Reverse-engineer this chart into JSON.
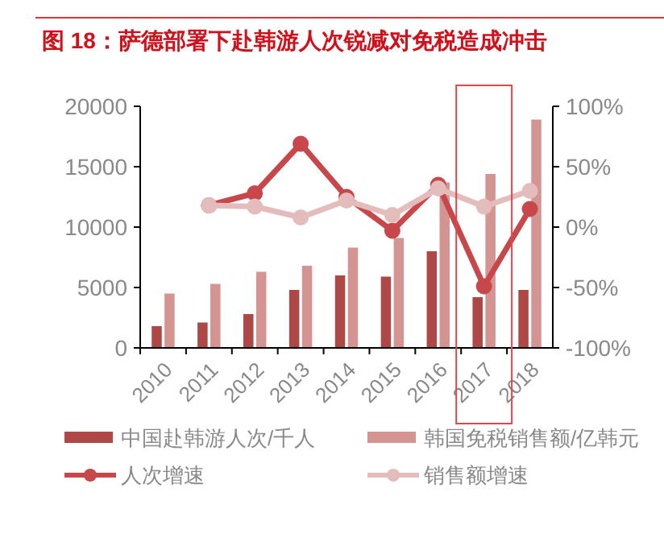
{
  "chart_data": {
    "type": "bar",
    "title": "图 18：萨德部署下赴韩游人次锐减对免税造成冲击",
    "categories": [
      "2010",
      "2011",
      "2012",
      "2013",
      "2014",
      "2015",
      "2016",
      "2017",
      "2018"
    ],
    "series": [
      {
        "name": "中国赴韩游人次/千人",
        "color": "#ad4846",
        "values": [
          1800,
          2100,
          2800,
          4800,
          6000,
          5900,
          8000,
          4200,
          4800
        ]
      },
      {
        "name": "韩国免税销售额/亿韩元",
        "color": "#d49592",
        "values": [
          4500,
          5300,
          6300,
          6800,
          8300,
          9100,
          13700,
          14400,
          18900
        ]
      },
      {
        "name": "人次增速",
        "type": "line",
        "axis": "y2",
        "color": "#c8474a",
        "marker": "circle",
        "values": [
          null,
          18,
          28,
          69,
          25,
          -3,
          35,
          -49,
          15
        ]
      },
      {
        "name": "销售额增速",
        "type": "line",
        "axis": "y2",
        "color": "#e5bcbc",
        "marker": "circle",
        "values": [
          null,
          18,
          17,
          8,
          22,
          10,
          32,
          17,
          30
        ]
      }
    ],
    "ylim": [
      0,
      20000
    ],
    "yticks": [
      0,
      5000,
      10000,
      15000,
      20000
    ],
    "y2lim": [
      -100,
      100
    ],
    "y2ticks": [
      {
        "value": -100,
        "label": "-100%"
      },
      {
        "value": -50,
        "label": "-50%"
      },
      {
        "value": 0,
        "label": "0%"
      },
      {
        "value": 50,
        "label": "50%"
      },
      {
        "value": 100,
        "label": "100%"
      }
    ],
    "grid": false,
    "legend": "bottom"
  }
}
